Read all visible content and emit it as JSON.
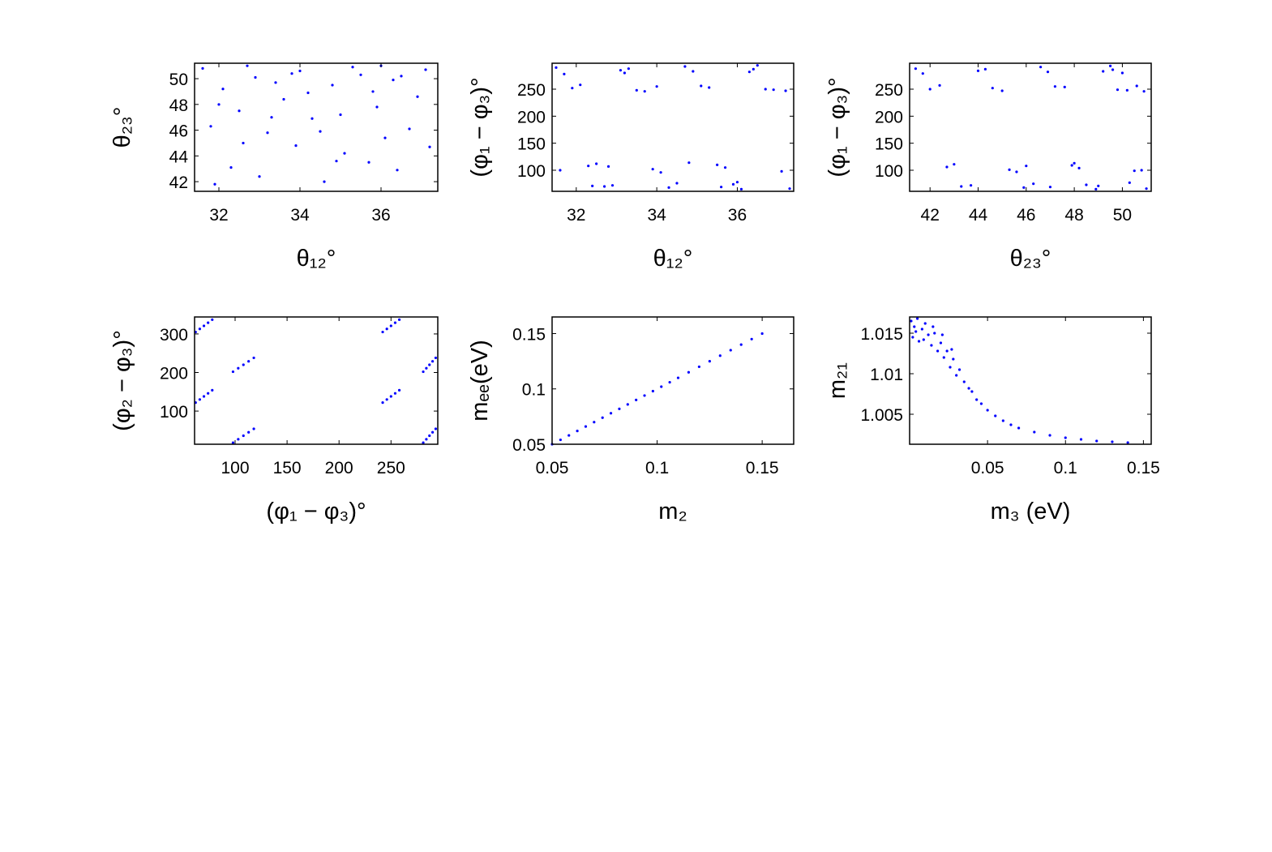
{
  "chart_data": [
    {
      "type": "scatter",
      "xlabel": "θ₁₂°",
      "ylabel": "θ₂₃°",
      "color": "#0000ff",
      "xlim": [
        31.4,
        37.4
      ],
      "ylim": [
        41.25,
        51.2
      ],
      "xticks": [
        32,
        34,
        36
      ],
      "yticks": [
        42,
        44,
        46,
        48,
        50
      ],
      "x": [
        31.6,
        32.1,
        32.5,
        32.9,
        33.2,
        33.6,
        34.0,
        34.3,
        34.8,
        35.1,
        35.5,
        35.9,
        36.3,
        36.7,
        37.1,
        31.8,
        32.3,
        32.7,
        33.0,
        33.4,
        33.9,
        34.2,
        34.6,
        35.0,
        35.3,
        35.7,
        36.1,
        36.5,
        36.9,
        37.2,
        31.9,
        32.6,
        33.3,
        34.5,
        35.8,
        36.4,
        32.0,
        33.8,
        34.9,
        36.0
      ],
      "y": [
        50.8,
        49.2,
        47.5,
        50.1,
        45.8,
        48.4,
        50.6,
        46.9,
        49.5,
        44.2,
        50.3,
        47.8,
        49.9,
        46.1,
        50.7,
        46.3,
        43.1,
        51.0,
        42.4,
        49.7,
        44.8,
        48.9,
        42.0,
        47.2,
        50.9,
        43.5,
        45.4,
        50.2,
        48.6,
        44.7,
        41.8,
        45.0,
        47.0,
        45.9,
        49.0,
        42.9,
        48.0,
        50.4,
        43.6,
        51.0
      ]
    },
    {
      "type": "scatter",
      "xlabel": "θ₁₂°",
      "ylabel": "(φ₁ − φ₃)°",
      "color": "#0000ff",
      "xlim": [
        31.4,
        37.4
      ],
      "ylim": [
        61,
        298
      ],
      "xticks": [
        32,
        34,
        36
      ],
      "yticks": [
        100,
        150,
        200,
        250
      ],
      "x": [
        31.5,
        31.9,
        32.3,
        32.7,
        33.1,
        33.5,
        33.9,
        34.3,
        34.7,
        35.1,
        35.5,
        35.9,
        36.3,
        36.7,
        37.1,
        37.3,
        31.7,
        32.1,
        32.5,
        32.9,
        33.3,
        33.7,
        34.1,
        34.5,
        34.9,
        35.3,
        35.7,
        36.1,
        36.5,
        36.9,
        31.6,
        32.4,
        33.2,
        34.0,
        34.8,
        35.6,
        36.4,
        37.2,
        32.8,
        36.0
      ],
      "y": [
        290,
        252,
        108,
        70,
        285,
        248,
        102,
        68,
        292,
        256,
        110,
        74,
        282,
        250,
        98,
        66,
        278,
        258,
        112,
        72,
        288,
        246,
        96,
        76,
        283,
        253,
        105,
        65,
        294,
        249,
        100,
        71,
        280,
        255,
        114,
        69,
        287,
        247,
        107,
        78
      ]
    },
    {
      "type": "scatter",
      "xlabel": "θ₂₃°",
      "ylabel": "(φ₁ − φ₃)°",
      "color": "#0000ff",
      "xlim": [
        41.15,
        51.2
      ],
      "ylim": [
        61,
        298
      ],
      "xticks": [
        42,
        44,
        46,
        48,
        50
      ],
      "yticks": [
        100,
        150,
        200,
        250
      ],
      "x": [
        41.4,
        42.0,
        42.7,
        43.3,
        44.0,
        44.6,
        45.3,
        45.9,
        46.6,
        47.2,
        47.9,
        48.5,
        49.2,
        49.8,
        50.5,
        51.0,
        41.7,
        42.4,
        43.0,
        43.7,
        44.3,
        45.0,
        45.6,
        46.3,
        46.9,
        47.6,
        48.2,
        48.9,
        49.5,
        50.2,
        50.8,
        49.0,
        50.0,
        50.6,
        48.0,
        47.0,
        49.6,
        50.9,
        46.0,
        50.3
      ],
      "y": [
        288,
        250,
        106,
        70,
        284,
        252,
        101,
        68,
        291,
        255,
        109,
        73,
        283,
        249,
        99,
        66,
        279,
        257,
        111,
        72,
        287,
        247,
        97,
        75,
        282,
        254,
        104,
        65,
        293,
        248,
        100,
        71,
        280,
        256,
        113,
        69,
        286,
        246,
        108,
        77
      ]
    },
    {
      "type": "scatter",
      "xlabel": "(φ₁ − φ₃)°",
      "ylabel": "(φ₂ − φ₃)°",
      "color": "#0000ff",
      "xlim": [
        61,
        295
      ],
      "ylim": [
        14,
        344
      ],
      "xticks": [
        100,
        150,
        200,
        250
      ],
      "yticks": [
        100,
        200,
        300
      ],
      "x": [
        62,
        66,
        70,
        74,
        78,
        62,
        66,
        70,
        74,
        78,
        98,
        103,
        108,
        113,
        118,
        98,
        103,
        108,
        113,
        118,
        242,
        246,
        250,
        254,
        258,
        242,
        246,
        250,
        254,
        258,
        281,
        284,
        287,
        290,
        293,
        281,
        284,
        287,
        290,
        293
      ],
      "y": [
        305,
        313,
        321,
        329,
        337,
        122,
        130,
        138,
        146,
        154,
        18,
        27,
        36,
        45,
        54,
        202,
        211,
        220,
        229,
        238,
        305,
        313,
        321,
        329,
        337,
        122,
        130,
        138,
        146,
        154,
        18,
        27,
        36,
        45,
        54,
        202,
        211,
        220,
        229,
        238
      ]
    },
    {
      "type": "scatter",
      "xlabel": "m₂",
      "ylabel": "mₑₑ(eV)",
      "color": "#0000ff",
      "xlim": [
        0.05,
        0.165
      ],
      "ylim": [
        0.05,
        0.165
      ],
      "xticks": [
        0.05,
        0.1,
        0.15
      ],
      "yticks": [
        0.05,
        0.1,
        0.15
      ],
      "x": [
        0.05,
        0.054,
        0.058,
        0.062,
        0.066,
        0.07,
        0.074,
        0.078,
        0.082,
        0.086,
        0.09,
        0.094,
        0.098,
        0.102,
        0.106,
        0.11,
        0.115,
        0.12,
        0.125,
        0.13,
        0.135,
        0.14,
        0.145,
        0.15
      ],
      "y": [
        0.05,
        0.054,
        0.058,
        0.062,
        0.066,
        0.07,
        0.074,
        0.078,
        0.082,
        0.086,
        0.09,
        0.094,
        0.098,
        0.102,
        0.106,
        0.11,
        0.115,
        0.12,
        0.125,
        0.13,
        0.135,
        0.14,
        0.145,
        0.15
      ]
    },
    {
      "type": "scatter",
      "xlabel": "m₃ (eV)",
      "ylabel": "m₂₁",
      "color": "#0000ff",
      "xlim": [
        0,
        0.155
      ],
      "ylim": [
        1.0013,
        1.017
      ],
      "xticks": [
        0.05,
        0.1,
        0.15
      ],
      "yticks": [
        1.005,
        1.01,
        1.015
      ],
      "x": [
        0.001,
        0.002,
        0.003,
        0.005,
        0.006,
        0.008,
        0.01,
        0.012,
        0.014,
        0.016,
        0.018,
        0.02,
        0.022,
        0.024,
        0.026,
        0.028,
        0.03,
        0.032,
        0.035,
        0.038,
        0.04,
        0.043,
        0.046,
        0.05,
        0.055,
        0.06,
        0.065,
        0.07,
        0.08,
        0.09,
        0.1,
        0.11,
        0.12,
        0.13,
        0.14,
        0.004,
        0.009,
        0.015,
        0.021,
        0.027
      ],
      "y": [
        1.0165,
        1.0145,
        1.0158,
        1.0168,
        1.014,
        1.0155,
        1.0162,
        1.0148,
        1.0135,
        1.015,
        1.0128,
        1.0138,
        1.012,
        1.0128,
        1.0108,
        1.0118,
        1.0098,
        1.0105,
        1.009,
        1.0082,
        1.0078,
        1.0068,
        1.0063,
        1.0055,
        1.0048,
        1.0042,
        1.0037,
        1.0033,
        1.0028,
        1.0024,
        1.0021,
        1.0019,
        1.0017,
        1.0016,
        1.0015,
        1.0152,
        1.0142,
        1.0158,
        1.0148,
        1.013
      ]
    }
  ]
}
